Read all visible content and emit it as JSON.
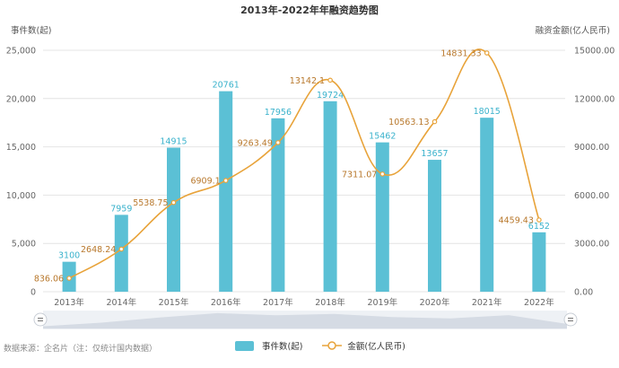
{
  "colors": {
    "bar": "#5bc0d5",
    "bar_label": "#3ab2cc",
    "line": "#e8a33a",
    "line_label": "#b8782c",
    "slider_fill": "#d5dbe4"
  },
  "footer": {
    "source": "数据来源：企名片（注：仅统计国内数据）"
  },
  "legend": {
    "items": [
      {
        "label": "事件数(起)",
        "type": "bar"
      },
      {
        "label": "金额(亿人民币)",
        "type": "line"
      }
    ]
  },
  "chart_data": {
    "type": "bar",
    "title": "2013年-2022年年融资趋势图",
    "categories": [
      "2013年",
      "2014年",
      "2015年",
      "2016年",
      "2017年",
      "2018年",
      "2019年",
      "2020年",
      "2021年",
      "2022年"
    ],
    "series": [
      {
        "name": "事件数(起)",
        "type": "bar",
        "axis": "left",
        "values": [
          3100,
          7959,
          14915,
          20761,
          17956,
          19724,
          15462,
          13657,
          18015,
          6152
        ],
        "labels": [
          "3100",
          "7959",
          "14915",
          "20761",
          "17956",
          "19724",
          "15462",
          "13657",
          "18015",
          "6152"
        ]
      },
      {
        "name": "金额(亿人民币)",
        "type": "line",
        "smooth": true,
        "axis": "right",
        "values": [
          836.06,
          2648.24,
          5538.75,
          6909.1,
          9263.49,
          13142.1,
          7311.07,
          10563.13,
          14831.33,
          4459.43
        ],
        "labels": [
          "836.06",
          "2648.24",
          "5538.75",
          "6909.1",
          "9263.49",
          "13142.1",
          "7311.07",
          "10563.13",
          "14831.33",
          "4459.43"
        ]
      }
    ],
    "left_axis": {
      "name": "事件数(起)",
      "range": [
        0,
        25000
      ],
      "ticks": [
        0,
        5000,
        10000,
        15000,
        20000,
        25000
      ],
      "tick_labels": [
        "0",
        "5,000",
        "10,000",
        "15,000",
        "20,000",
        "25,000"
      ]
    },
    "right_axis": {
      "name": "融资金额(亿人民币)",
      "range": [
        0,
        15000
      ],
      "ticks": [
        0,
        3000,
        6000,
        9000,
        12000,
        15000
      ],
      "tick_labels": [
        "0.00",
        "3000.00",
        "6000.00",
        "9000.00",
        "12000.00",
        "15000.00"
      ]
    },
    "grid": true,
    "legend_position": "bottom-center",
    "data_zoom": {
      "start": 0,
      "end": 100
    }
  }
}
